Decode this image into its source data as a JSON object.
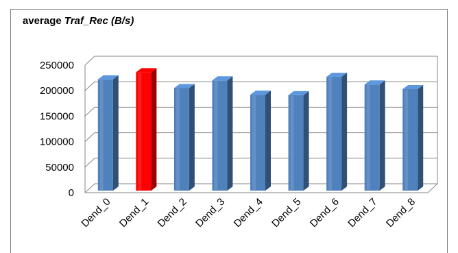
{
  "chart_data": {
    "type": "bar",
    "title_prefix": "average",
    "title_metric": "Traf_Rec (B/s)",
    "categories": [
      "Dend_0",
      "Dend_1",
      "Dend_2",
      "Dend_3",
      "Dend_4",
      "Dend_5",
      "Dend_6",
      "Dend_7",
      "Dend_8"
    ],
    "values": [
      218000,
      232000,
      201000,
      216000,
      188000,
      187000,
      223000,
      208000,
      199000
    ],
    "highlight_index": 1,
    "ylim": [
      0,
      250000
    ],
    "yticks": [
      0,
      50000,
      100000,
      150000,
      200000,
      250000
    ],
    "ytick_labels": [
      "0",
      "50000",
      "100000",
      "150000",
      "200000",
      "250000"
    ],
    "grid": true,
    "legend": "none",
    "colors": {
      "bar": "#4f81bd",
      "bar_highlight": "#ff0000",
      "grid": "#868686"
    }
  }
}
